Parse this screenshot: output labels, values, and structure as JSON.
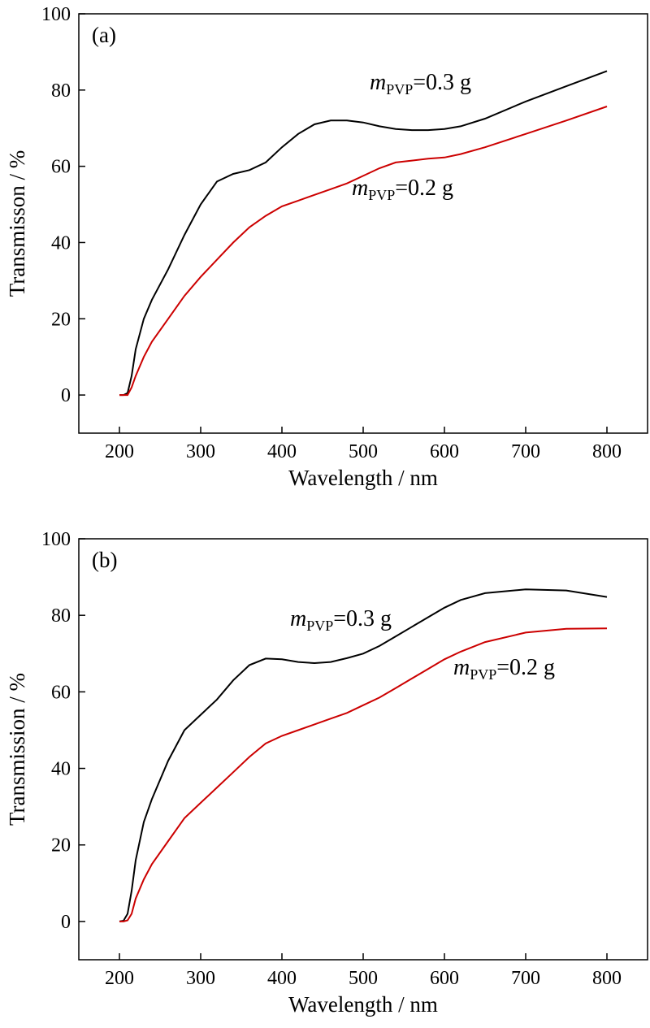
{
  "chart_data": [
    {
      "type": "line",
      "panel_label": "(a)",
      "xlabel": "Wavelength / nm",
      "ylabel": "Transmisson / %",
      "x": [
        200,
        205,
        210,
        215,
        220,
        230,
        240,
        260,
        280,
        300,
        320,
        340,
        360,
        380,
        400,
        420,
        440,
        460,
        480,
        500,
        520,
        540,
        560,
        580,
        600,
        620,
        650,
        700,
        750,
        800
      ],
      "xlim": [
        150,
        850
      ],
      "ylim": [
        -10,
        100
      ],
      "xticks": [
        200,
        300,
        400,
        500,
        600,
        700,
        800
      ],
      "yticks": [
        0,
        20,
        40,
        60,
        80,
        100
      ],
      "series": [
        {
          "name": [
            "m",
            "PVP",
            "=0.3 g"
          ],
          "color": "#000000",
          "values": [
            0,
            0,
            0.5,
            5,
            12,
            20,
            25,
            33,
            42,
            50,
            56,
            58,
            59,
            61,
            65,
            68.5,
            71,
            72,
            72,
            71.5,
            70.5,
            69.8,
            69.5,
            69.5,
            69.8,
            70.5,
            72.5,
            77,
            81,
            85
          ]
        },
        {
          "name": [
            "m",
            "PVP",
            "=0.2 g"
          ],
          "color": "#cc0000",
          "values": [
            0,
            0,
            0,
            2,
            5,
            10,
            14,
            20,
            26,
            31,
            35.5,
            40,
            44,
            47,
            49.5,
            51,
            52.5,
            54,
            55.5,
            57.5,
            59.5,
            61,
            61.5,
            62,
            62.3,
            63.2,
            65,
            68.5,
            72,
            75.7
          ]
        }
      ]
    },
    {
      "type": "line",
      "panel_label": "(b)",
      "xlabel": "Wavelength / nm",
      "ylabel": "Transmission / %",
      "x": [
        200,
        205,
        210,
        215,
        220,
        230,
        240,
        260,
        280,
        300,
        320,
        340,
        360,
        380,
        400,
        420,
        440,
        460,
        480,
        500,
        520,
        540,
        560,
        580,
        600,
        620,
        650,
        700,
        750,
        800
      ],
      "xlim": [
        150,
        850
      ],
      "ylim": [
        -10,
        100
      ],
      "xticks": [
        200,
        300,
        400,
        500,
        600,
        700,
        800
      ],
      "yticks": [
        0,
        20,
        40,
        60,
        80,
        100
      ],
      "series": [
        {
          "name": [
            "m",
            "PVP",
            "=0.3 g"
          ],
          "color": "#000000",
          "values": [
            0,
            0.2,
            2,
            8,
            16,
            26,
            32,
            42,
            50,
            54,
            58,
            63,
            67,
            68.7,
            68.5,
            67.8,
            67.5,
            67.8,
            68.8,
            70,
            72,
            74.5,
            77,
            79.5,
            82,
            84,
            85.8,
            86.8,
            86.5,
            84.8
          ]
        },
        {
          "name": [
            "m",
            "PVP",
            "=0.2 g"
          ],
          "color": "#cc0000",
          "values": [
            0,
            0,
            0.3,
            2,
            6,
            11,
            15,
            21,
            27,
            31,
            35,
            39,
            43,
            46.5,
            48.5,
            50,
            51.5,
            53,
            54.5,
            56.5,
            58.5,
            61,
            63.5,
            66,
            68.5,
            70.5,
            73,
            75.5,
            76.5,
            76.6
          ]
        }
      ]
    }
  ]
}
